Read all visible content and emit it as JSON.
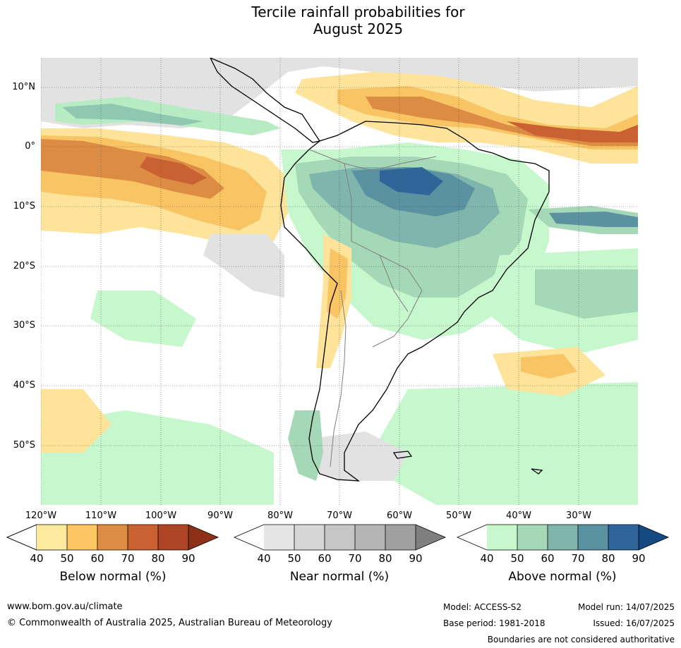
{
  "title": {
    "line1": "Tercile rainfall probabilities for",
    "line2": "August 2025"
  },
  "map": {
    "lat_labels": [
      "10°N",
      "0°",
      "10°S",
      "20°S",
      "30°S",
      "40°S",
      "50°S"
    ],
    "lon_labels": [
      "120°W",
      "110°W",
      "100°W",
      "90°W",
      "80°W",
      "70°W",
      "60°W",
      "50°W",
      "40°W",
      "30°W"
    ]
  },
  "colorbars": {
    "below": {
      "label": "Below normal (%)",
      "ticks": [
        "40",
        "50",
        "60",
        "70",
        "80",
        "90"
      ],
      "colors": [
        "#ffffff",
        "#feea9e",
        "#fdc662",
        "#de8e43",
        "#c96132",
        "#ad4426",
        "#8c3017"
      ]
    },
    "near": {
      "label": "Near normal (%)",
      "ticks": [
        "40",
        "50",
        "60",
        "70",
        "80",
        "90"
      ],
      "colors": [
        "#ffffff",
        "#e5e5e5",
        "#d6d6d6",
        "#c6c6c6",
        "#b4b4b4",
        "#a0a0a0",
        "#7f7f7f"
      ]
    },
    "above": {
      "label": "Above normal (%)",
      "ticks": [
        "40",
        "50",
        "60",
        "70",
        "80",
        "90"
      ],
      "colors": [
        "#ffffff",
        "#c7f7cd",
        "#a5d8b7",
        "#7fb5ac",
        "#5a92a2",
        "#2f6598",
        "#154a80"
      ]
    }
  },
  "footer": {
    "website": "www.bom.gov.au/climate",
    "copyright": "© Commonwealth of Australia 2025, Australian Bureau of Meteorology",
    "model": "Model: ACCESS-S2",
    "base_period": "Base period: 1981-2018",
    "model_run": "Model run: 14/07/2025",
    "issued": "Issued: 16/07/2025",
    "disclaimer": "Boundaries are not considered authoritative"
  }
}
